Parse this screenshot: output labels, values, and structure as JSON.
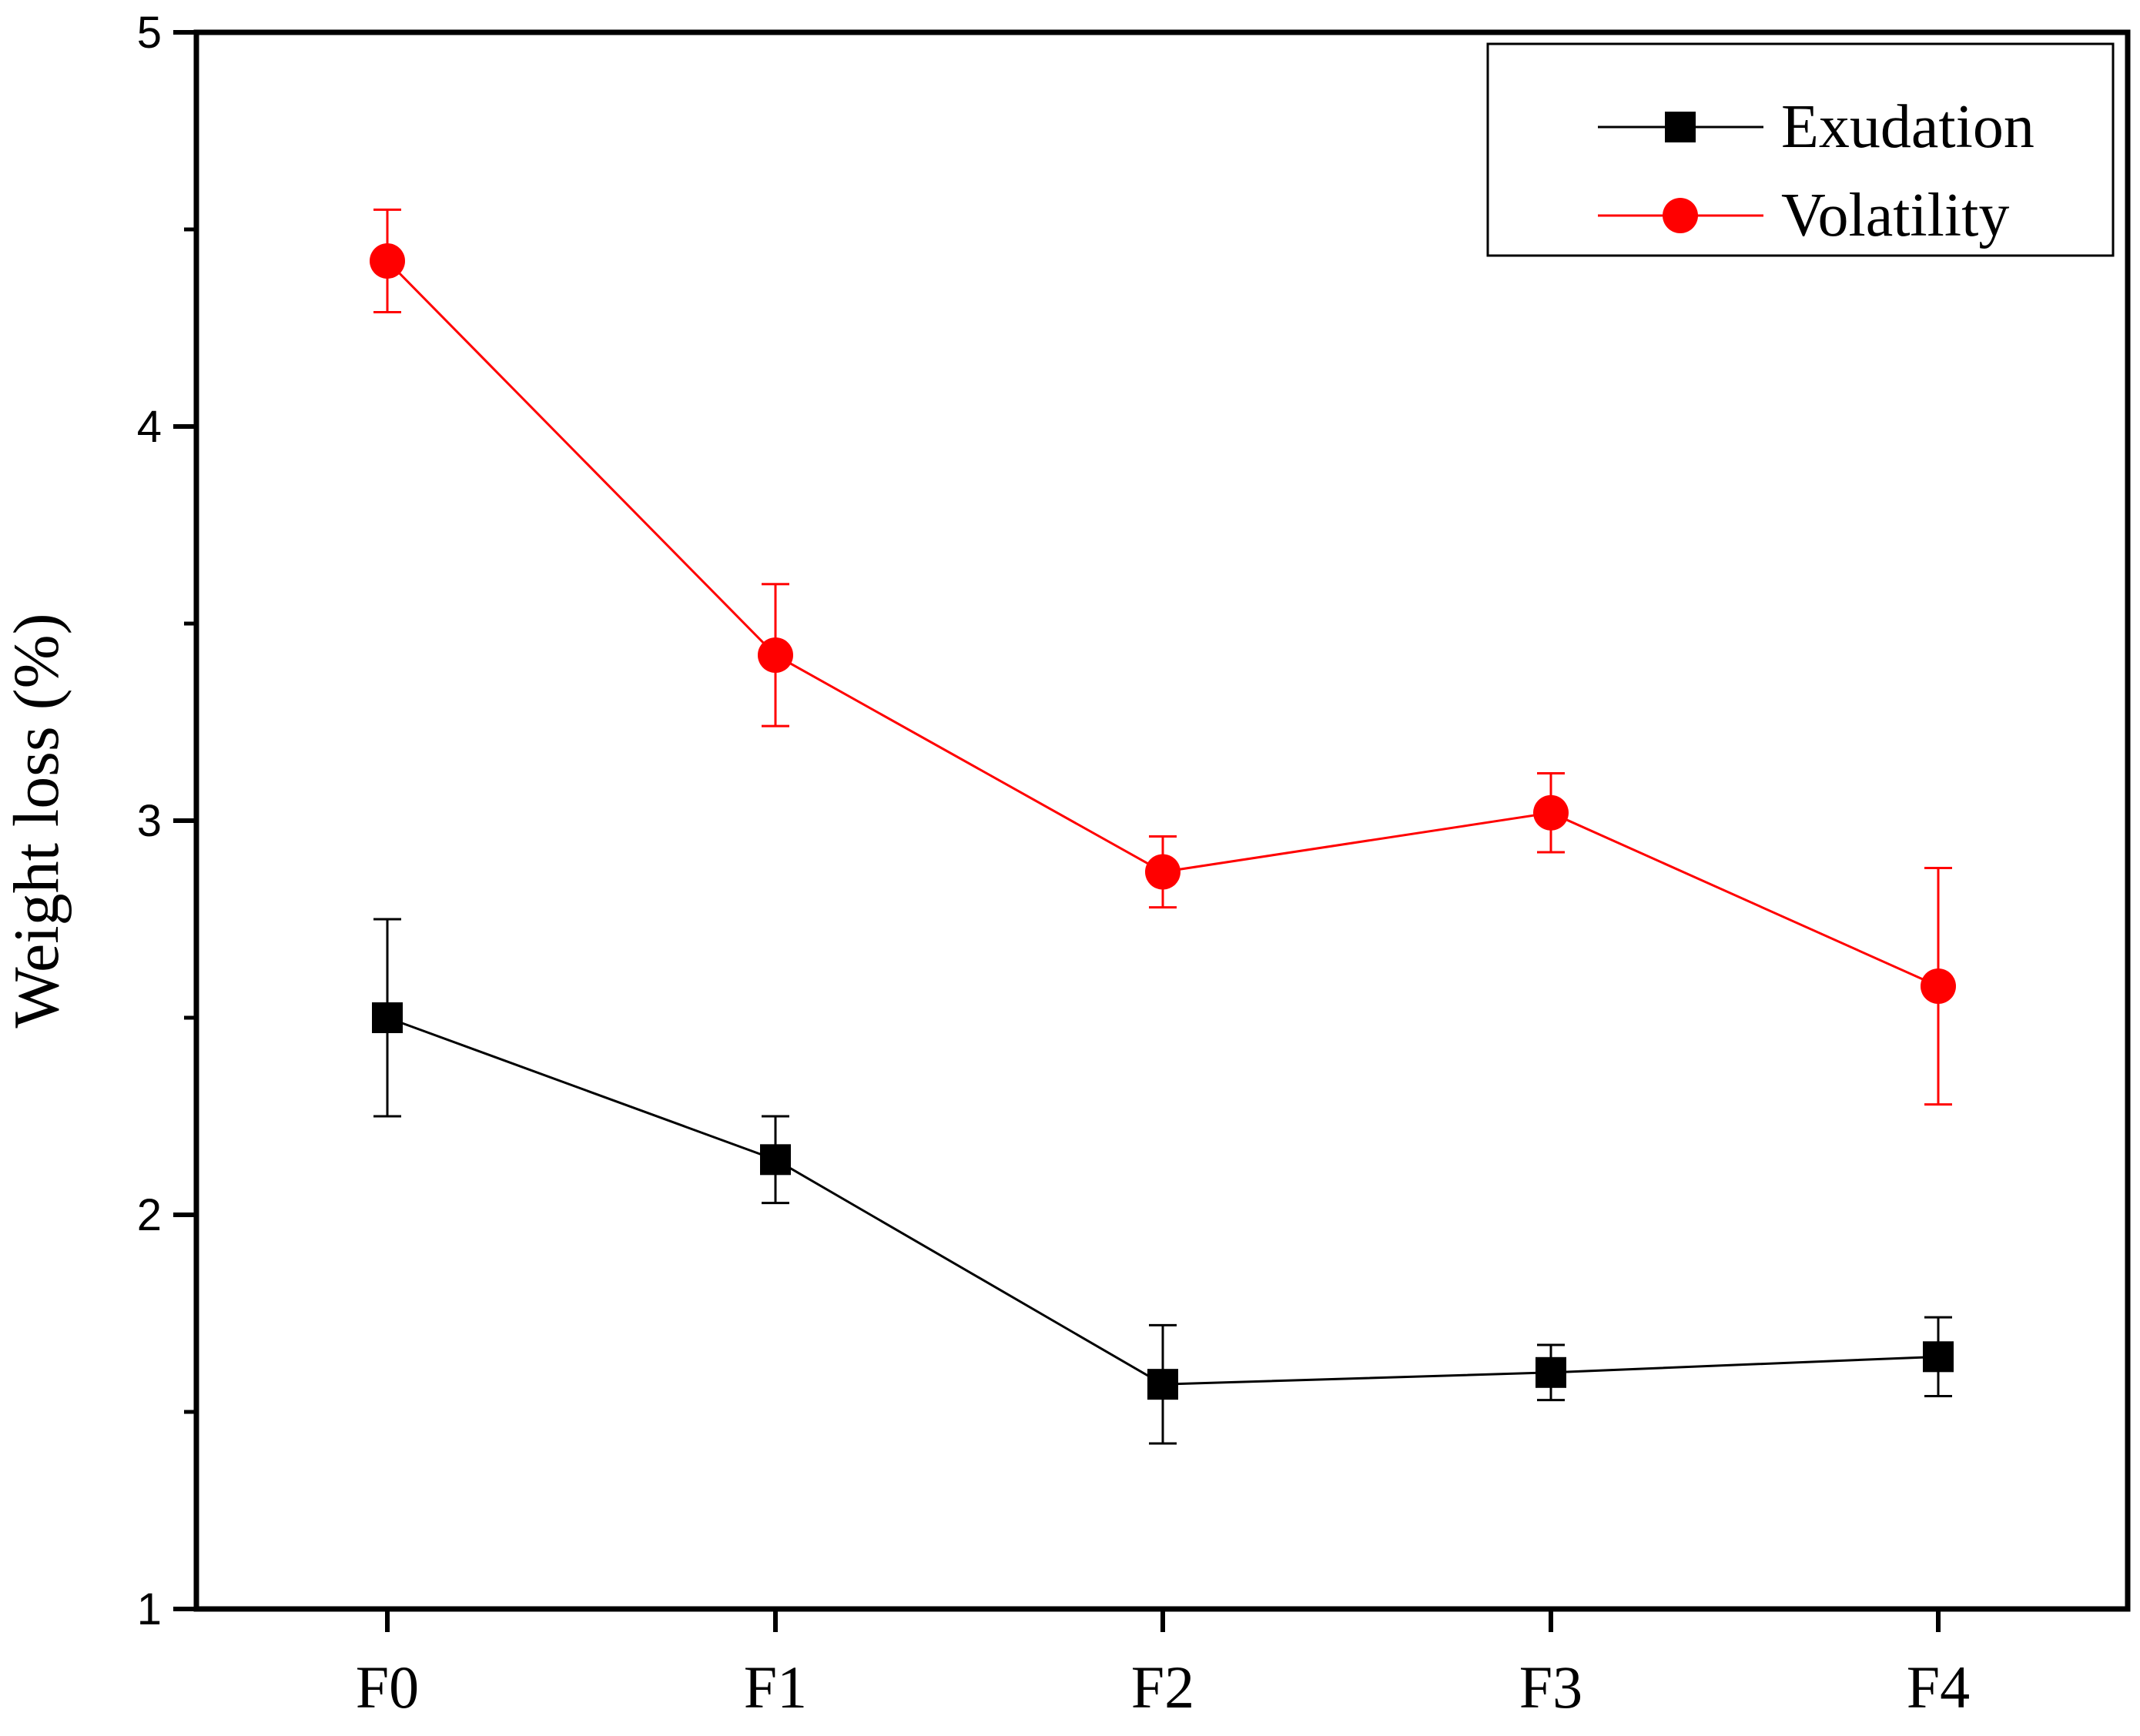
{
  "chart_data": {
    "type": "line",
    "title": "",
    "xlabel": "",
    "ylabel": "Weight loss (%)",
    "categories": [
      "F0",
      "F1",
      "F2",
      "F3",
      "F4"
    ],
    "ylim": [
      1,
      5
    ],
    "yticks": [
      1,
      2,
      3,
      4,
      5
    ],
    "grid": false,
    "legend_position": "top-right",
    "series": [
      {
        "name": "Exudation",
        "color": "#000000",
        "marker": "square",
        "values": [
          2.5,
          2.14,
          1.57,
          1.6,
          1.64
        ],
        "errors": [
          0.25,
          0.11,
          0.15,
          0.07,
          0.1
        ]
      },
      {
        "name": "Volatility",
        "color": "#ff0000",
        "marker": "circle",
        "values": [
          4.42,
          3.42,
          2.87,
          3.02,
          2.58
        ],
        "errors": [
          0.13,
          0.18,
          0.09,
          0.1,
          0.3
        ]
      }
    ]
  }
}
